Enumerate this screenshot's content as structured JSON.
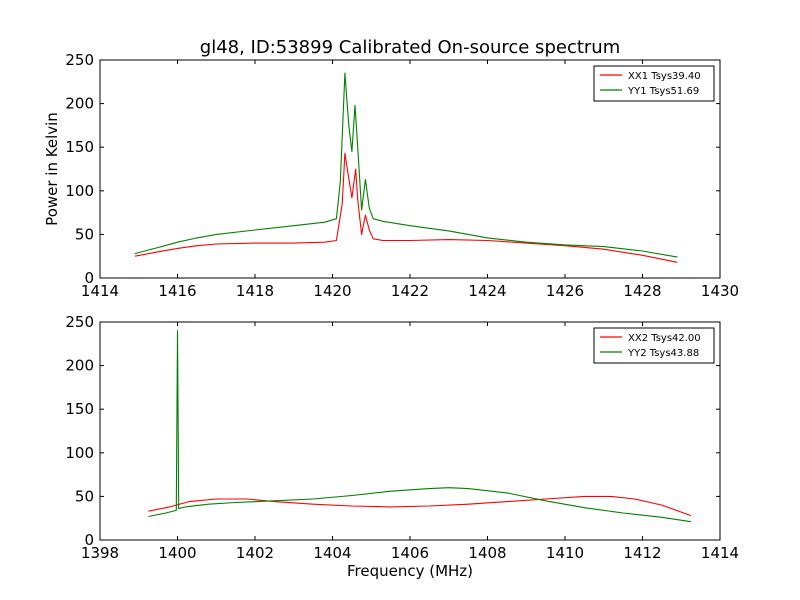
{
  "figure": {
    "title": "gl48, ID:53899 Calibrated On-source spectrum"
  },
  "chart_data": [
    {
      "type": "line",
      "title": "gl48, ID:53899 Calibrated On-source spectrum",
      "xlabel": "",
      "ylabel": "Power in Kelvin",
      "xlim": [
        1414,
        1430
      ],
      "ylim": [
        0,
        250
      ],
      "xticks": [
        1414,
        1416,
        1418,
        1420,
        1422,
        1424,
        1426,
        1428,
        1430
      ],
      "yticks": [
        0,
        50,
        100,
        150,
        200,
        250
      ],
      "grid": false,
      "legend_position": "top-right",
      "series": [
        {
          "name": "XX1 Tsys39.40",
          "color": "#ff0000",
          "x": [
            1414.9,
            1415.5,
            1416.0,
            1416.5,
            1417.0,
            1418.0,
            1419.0,
            1419.8,
            1420.1,
            1420.25,
            1420.32,
            1420.4,
            1420.5,
            1420.6,
            1420.65,
            1420.75,
            1420.85,
            1420.95,
            1421.05,
            1421.3,
            1422.0,
            1423.0,
            1424.0,
            1425.0,
            1426.0,
            1427.0,
            1428.0,
            1428.9
          ],
          "y": [
            25,
            30,
            34,
            37,
            39,
            40,
            40,
            41,
            43,
            85,
            143,
            120,
            92,
            125,
            90,
            50,
            72,
            55,
            45,
            43,
            43,
            44,
            43,
            40,
            37,
            33,
            26,
            18
          ]
        },
        {
          "name": "YY1 Tsys51.69",
          "color": "#008000",
          "x": [
            1414.9,
            1415.5,
            1416.0,
            1416.5,
            1417.0,
            1418.0,
            1419.0,
            1419.8,
            1420.1,
            1420.2,
            1420.32,
            1420.42,
            1420.5,
            1420.58,
            1420.65,
            1420.75,
            1420.85,
            1420.95,
            1421.05,
            1421.3,
            1422.0,
            1423.0,
            1424.0,
            1425.0,
            1426.0,
            1427.0,
            1428.0,
            1428.9
          ],
          "y": [
            28,
            35,
            41,
            46,
            50,
            55,
            60,
            64,
            68,
            110,
            235,
            175,
            145,
            198,
            150,
            78,
            113,
            80,
            68,
            65,
            60,
            54,
            46,
            41,
            38,
            36,
            31,
            24
          ]
        }
      ]
    },
    {
      "type": "line",
      "title": "",
      "xlabel": "Frequency (MHz)",
      "ylabel": "",
      "xlim": [
        1398,
        1414
      ],
      "ylim": [
        0,
        250
      ],
      "xticks": [
        1398,
        1400,
        1402,
        1404,
        1406,
        1408,
        1410,
        1412,
        1414
      ],
      "yticks": [
        0,
        50,
        100,
        150,
        200,
        250
      ],
      "grid": false,
      "legend_position": "top-right",
      "series": [
        {
          "name": "XX2 Tsys42.00",
          "color": "#ff0000",
          "x": [
            1399.25,
            1399.8,
            1400.3,
            1401.0,
            1401.8,
            1402.5,
            1403.5,
            1404.5,
            1405.5,
            1406.5,
            1407.5,
            1408.5,
            1409.5,
            1410.5,
            1411.2,
            1411.8,
            1412.5,
            1413.25
          ],
          "y": [
            33,
            38,
            44,
            47,
            47,
            44,
            41,
            39,
            38,
            39,
            41,
            44,
            47,
            50,
            50,
            47,
            40,
            28
          ]
        },
        {
          "name": "YY2 Tsys43.88",
          "color": "#008000",
          "x": [
            1399.25,
            1399.7,
            1399.97,
            1400.0,
            1400.03,
            1400.2,
            1400.8,
            1401.5,
            1402.5,
            1403.5,
            1404.5,
            1405.5,
            1406.5,
            1407.0,
            1407.5,
            1408.5,
            1409.5,
            1410.5,
            1411.5,
            1412.5,
            1413.25
          ],
          "y": [
            27,
            31,
            34,
            240,
            36,
            38,
            41,
            43,
            45,
            47,
            51,
            56,
            59,
            60,
            59,
            54,
            45,
            37,
            31,
            26,
            21
          ]
        }
      ]
    }
  ]
}
